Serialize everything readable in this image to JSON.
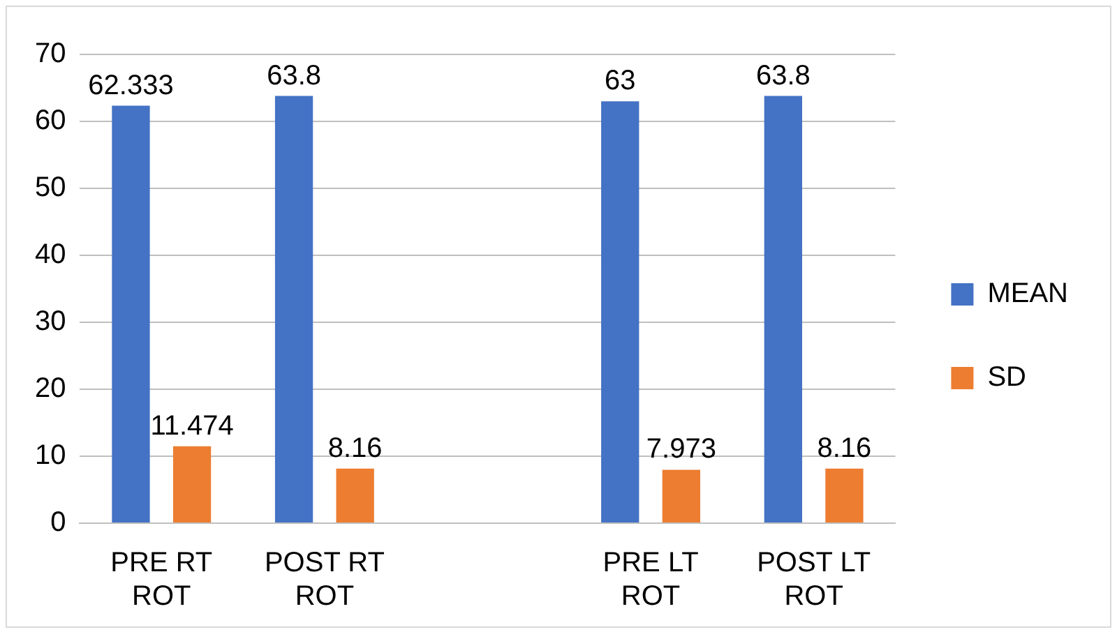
{
  "chart_data": {
    "type": "bar",
    "categories": [
      "PRE RT ROT",
      "POST RT ROT",
      null,
      "PRE LT ROT",
      "POST LT ROT"
    ],
    "series": [
      {
        "name": "MEAN",
        "color": "#4472c4",
        "values": [
          62.333,
          63.8,
          null,
          63,
          63.8
        ]
      },
      {
        "name": "SD",
        "color": "#ed7d31",
        "values": [
          11.474,
          8.16,
          null,
          7.973,
          8.16
        ]
      }
    ],
    "ylim": [
      0,
      70
    ],
    "yticks": [
      0,
      10,
      20,
      30,
      40,
      50,
      60,
      70
    ],
    "grid": "y",
    "legend": "right",
    "data_labels": true
  }
}
